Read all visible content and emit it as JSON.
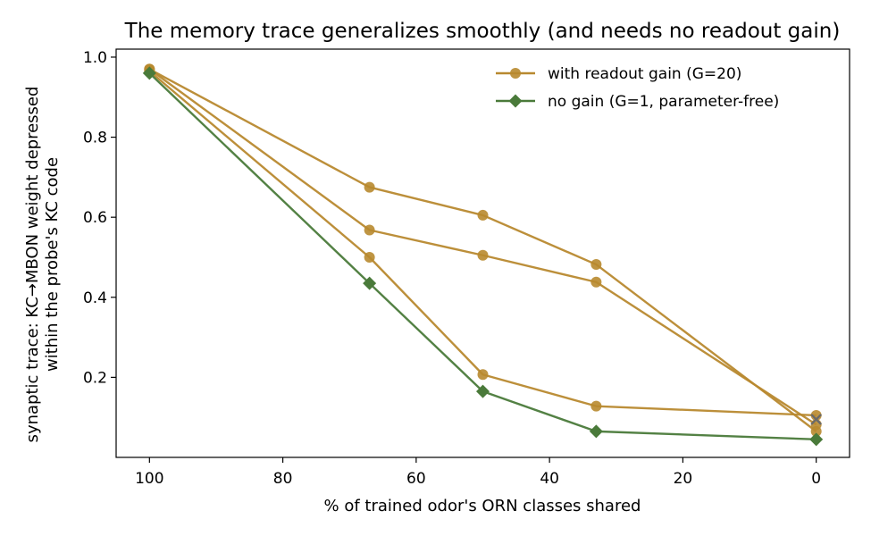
{
  "chart_data": {
    "type": "line",
    "title": "The memory trace generalizes smoothly (and needs no readout gain)",
    "xlabel": "% of trained odor's ORN classes shared",
    "ylabel_line1": "synaptic trace: KC→MBON weight depressed",
    "ylabel_line2": "within the probe's KC code",
    "xlim": [
      105,
      -5
    ],
    "ylim": [
      0.0,
      1.02
    ],
    "x_ticks": [
      100,
      80,
      60,
      40,
      20,
      0
    ],
    "y_ticks": [
      0.2,
      0.4,
      0.6,
      0.8,
      1.0
    ],
    "x_tick_labels": [
      "100",
      "80",
      "60",
      "40",
      "20",
      "0"
    ],
    "y_tick_labels": [
      "0.2",
      "0.4",
      "0.6",
      "0.8",
      "1.0"
    ],
    "grid": false,
    "legend_position": "top-right",
    "colors": {
      "gain": "#b8892f",
      "nogain": "#4a7a3a",
      "marker_x": "#6a6a6a"
    },
    "legend": [
      {
        "label": "with readout gain (G=20)",
        "marker": "circle",
        "color": "#b8892f"
      },
      {
        "label": "no gain (G=1, parameter-free)",
        "marker": "diamond",
        "color": "#4a7a3a"
      }
    ],
    "series": [
      {
        "group": "gain",
        "marker": "circle",
        "x": [
          100,
          67,
          50,
          33,
          0
        ],
        "y": [
          0.97,
          0.675,
          0.605,
          0.482,
          0.065
        ]
      },
      {
        "group": "gain",
        "marker": "circle",
        "x": [
          100,
          67,
          50,
          33,
          0
        ],
        "y": [
          0.97,
          0.568,
          0.505,
          0.438,
          0.082
        ]
      },
      {
        "group": "gain",
        "marker": "circle",
        "x": [
          100,
          67,
          50,
          33,
          0
        ],
        "y": [
          0.965,
          0.5,
          0.207,
          0.128,
          0.105
        ]
      },
      {
        "group": "nogain",
        "marker": "diamond",
        "x": [
          100,
          67,
          50,
          33,
          0
        ],
        "y": [
          0.96,
          0.435,
          0.165,
          0.065,
          0.045
        ]
      }
    ],
    "annotations": [
      {
        "marker": "x",
        "x": 0,
        "y": 0.095
      }
    ]
  }
}
